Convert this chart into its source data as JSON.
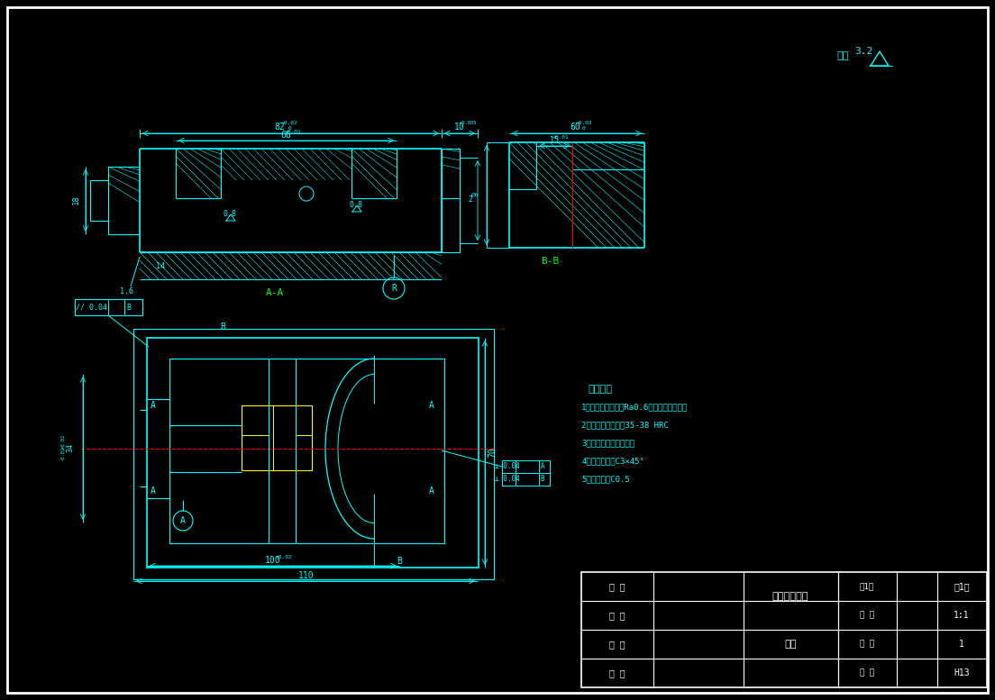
{
  "bg_color": "#000000",
  "line_color_cyan": "#00FFFF",
  "line_color_white": "#FFFFFF",
  "line_color_yellow": "#FFFF00",
  "line_color_red": "#FF0000",
  "line_color_green": "#00FF00",
  "tech_requirements": [
    "技术要求",
    "1、型腔表面粗糙度Ra0.6，油痕沿方向抛光",
    "2、型腔表面硬度为35-38 HRC",
    "3、各锐口须钳修去毛刺",
    "4、所有倒圆角C3×45°",
    "5、未注倒角C0.5"
  ]
}
